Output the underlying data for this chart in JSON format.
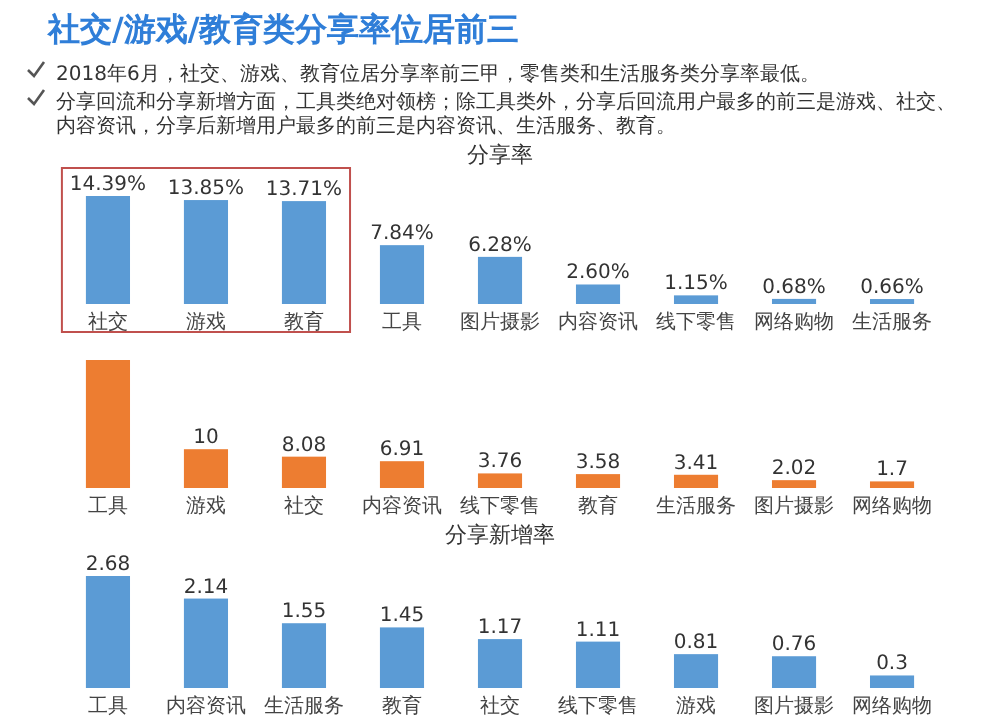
{
  "chart_data": [
    {
      "type": "other",
      "title": "社交/游戏/教育类分享率位居前三",
      "annotations": [
        "2018年6月，社交、游戏、教育位居分享率前三甲，零售类和生活服务类分享率最低。",
        "分享回流和分享新增方面，工具类绝对领榜；除工具类外，分享后回流用户最多的前三是游戏、社交、内容资讯，分享后新增用户最多的前三是内容资讯、生活服务、教育。"
      ]
    },
    {
      "type": "bar",
      "title": "分享率",
      "categories": [
        "社交",
        "游戏",
        "教育",
        "工具",
        "图片摄影",
        "内容资讯",
        "线下零售",
        "网络购物",
        "生活服务"
      ],
      "values": [
        14.39,
        13.85,
        13.71,
        7.84,
        6.28,
        2.6,
        1.15,
        0.68,
        0.66
      ],
      "value_labels": [
        "14.39%",
        "13.85%",
        "13.71%",
        "7.84%",
        "6.28%",
        "2.60%",
        "1.15%",
        "0.68%",
        "0.66%"
      ],
      "color": "#5b9bd5"
    },
    {
      "type": "bar",
      "categories": [
        "工具",
        "游戏",
        "社交",
        "内容资讯",
        "线下零售",
        "教育",
        "生活服务",
        "图片摄影",
        "网络购物"
      ],
      "values": [
        33,
        10,
        8.08,
        6.91,
        3.76,
        3.58,
        3.41,
        2.02,
        1.7
      ],
      "value_labels": [
        null,
        "10",
        "8.08",
        "6.91",
        "3.76",
        "3.58",
        "3.41",
        "2.02",
        "1.7"
      ],
      "color": "#ed7d31"
    },
    {
      "type": "bar",
      "title": "分享新增率",
      "categories": [
        "工具",
        "内容资讯",
        "生活服务",
        "教育",
        "社交",
        "线下零售",
        "游戏",
        "图片摄影",
        "网络购物"
      ],
      "values": [
        2.68,
        2.14,
        1.55,
        1.45,
        1.17,
        1.11,
        0.81,
        0.76,
        0.3
      ],
      "data_labels": true,
      "color": "#5b9bd5"
    }
  ]
}
